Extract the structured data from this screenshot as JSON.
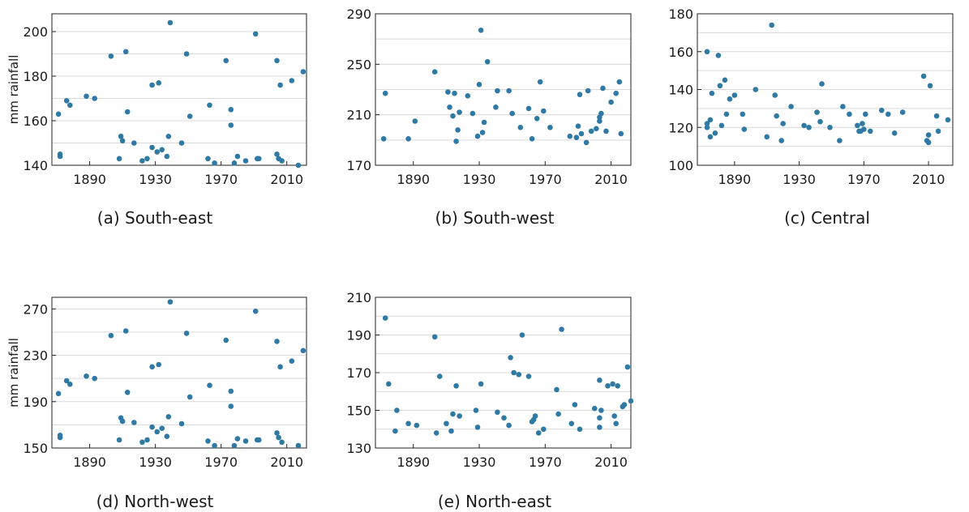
{
  "point_color": "#2f79a5",
  "chart_data": [
    {
      "type": "scatter",
      "caption": "(a) South-east",
      "ylabel": "mm rainfall",
      "xlim": [
        1867,
        2022
      ],
      "ylim": [
        140,
        208
      ],
      "xticks": [
        1890,
        1930,
        1970,
        2010
      ],
      "yticks": [
        140,
        160,
        180,
        200
      ],
      "points": [
        [
          1871,
          163
        ],
        [
          1872,
          145
        ],
        [
          1872,
          144
        ],
        [
          1876,
          169
        ],
        [
          1878,
          167
        ],
        [
          1888,
          171
        ],
        [
          1893,
          170
        ],
        [
          1903,
          189
        ],
        [
          1908,
          143
        ],
        [
          1909,
          153
        ],
        [
          1910,
          151
        ],
        [
          1912,
          191
        ],
        [
          1913,
          164
        ],
        [
          1917,
          150
        ],
        [
          1922,
          142
        ],
        [
          1925,
          143
        ],
        [
          1928,
          176
        ],
        [
          1928,
          148
        ],
        [
          1931,
          146
        ],
        [
          1932,
          177
        ],
        [
          1934,
          147
        ],
        [
          1937,
          144
        ],
        [
          1938,
          153
        ],
        [
          1939,
          204
        ],
        [
          1946,
          150
        ],
        [
          1949,
          190
        ],
        [
          1951,
          162
        ],
        [
          1962,
          143
        ],
        [
          1963,
          167
        ],
        [
          1966,
          141
        ],
        [
          1973,
          187
        ],
        [
          1976,
          165
        ],
        [
          1976,
          158
        ],
        [
          1978,
          141
        ],
        [
          1980,
          144
        ],
        [
          1985,
          142
        ],
        [
          1991,
          199
        ],
        [
          1992,
          143
        ],
        [
          1993,
          143
        ],
        [
          2004,
          187
        ],
        [
          2004,
          145
        ],
        [
          2005,
          143
        ],
        [
          2006,
          176
        ],
        [
          2007,
          142
        ],
        [
          2013,
          178
        ],
        [
          2017,
          140
        ],
        [
          2020,
          182
        ]
      ]
    },
    {
      "type": "scatter",
      "caption": "(b) South-west",
      "ylabel": "",
      "xlim": [
        1867,
        2022
      ],
      "ylim": [
        170,
        290
      ],
      "xticks": [
        1890,
        1930,
        1970,
        2010
      ],
      "yticks": [
        170,
        210,
        250,
        290
      ],
      "points": [
        [
          1872,
          191
        ],
        [
          1873,
          227
        ],
        [
          1887,
          191
        ],
        [
          1891,
          205
        ],
        [
          1903,
          244
        ],
        [
          1911,
          228
        ],
        [
          1912,
          216
        ],
        [
          1914,
          209
        ],
        [
          1915,
          227
        ],
        [
          1916,
          189
        ],
        [
          1917,
          198
        ],
        [
          1918,
          212
        ],
        [
          1923,
          225
        ],
        [
          1926,
          211
        ],
        [
          1929,
          193
        ],
        [
          1930,
          234
        ],
        [
          1931,
          277
        ],
        [
          1932,
          196
        ],
        [
          1933,
          204
        ],
        [
          1935,
          252
        ],
        [
          1940,
          216
        ],
        [
          1941,
          229
        ],
        [
          1948,
          229
        ],
        [
          1950,
          211
        ],
        [
          1955,
          200
        ],
        [
          1960,
          215
        ],
        [
          1962,
          191
        ],
        [
          1965,
          207
        ],
        [
          1967,
          236
        ],
        [
          1969,
          213
        ],
        [
          1973,
          200
        ],
        [
          1985,
          193
        ],
        [
          1989,
          192
        ],
        [
          1990,
          201
        ],
        [
          1991,
          226
        ],
        [
          1992,
          195
        ],
        [
          1995,
          188
        ],
        [
          1996,
          229
        ],
        [
          1998,
          197
        ],
        [
          2001,
          199
        ],
        [
          2003,
          205
        ],
        [
          2003,
          208
        ],
        [
          2004,
          211
        ],
        [
          2005,
          231
        ],
        [
          2007,
          197
        ],
        [
          2010,
          220
        ],
        [
          2013,
          227
        ],
        [
          2015,
          236
        ],
        [
          2016,
          195
        ]
      ]
    },
    {
      "type": "scatter",
      "caption": "(c) Central",
      "ylabel": "",
      "xlim": [
        1867,
        2025
      ],
      "ylim": [
        100,
        180
      ],
      "xticks": [
        1890,
        1930,
        1970,
        2010
      ],
      "yticks": [
        100,
        120,
        140,
        160,
        180
      ],
      "points": [
        [
          1873,
          160
        ],
        [
          1873,
          122
        ],
        [
          1873,
          120
        ],
        [
          1875,
          124
        ],
        [
          1875,
          115
        ],
        [
          1876,
          138
        ],
        [
          1878,
          117
        ],
        [
          1880,
          158
        ],
        [
          1881,
          142
        ],
        [
          1882,
          121
        ],
        [
          1884,
          145
        ],
        [
          1885,
          127
        ],
        [
          1887,
          135
        ],
        [
          1890,
          137
        ],
        [
          1895,
          127
        ],
        [
          1896,
          119
        ],
        [
          1903,
          140
        ],
        [
          1910,
          115
        ],
        [
          1913,
          174
        ],
        [
          1915,
          137
        ],
        [
          1916,
          126
        ],
        [
          1919,
          113
        ],
        [
          1920,
          122
        ],
        [
          1925,
          131
        ],
        [
          1933,
          121
        ],
        [
          1936,
          120
        ],
        [
          1941,
          128
        ],
        [
          1943,
          123
        ],
        [
          1944,
          143
        ],
        [
          1949,
          120
        ],
        [
          1955,
          113
        ],
        [
          1957,
          131
        ],
        [
          1961,
          127
        ],
        [
          1966,
          121
        ],
        [
          1967,
          118
        ],
        [
          1968,
          118
        ],
        [
          1969,
          122
        ],
        [
          1970,
          119
        ],
        [
          1971,
          127
        ],
        [
          1974,
          118
        ],
        [
          1981,
          129
        ],
        [
          1985,
          127
        ],
        [
          1989,
          117
        ],
        [
          1994,
          128
        ],
        [
          2007,
          147
        ],
        [
          2009,
          113
        ],
        [
          2010,
          112
        ],
        [
          2010,
          116
        ],
        [
          2011,
          142
        ],
        [
          2015,
          126
        ],
        [
          2016,
          118
        ],
        [
          2022,
          124
        ]
      ]
    },
    {
      "type": "scatter",
      "caption": "(d) North-west",
      "ylabel": "mm rainfall",
      "xlim": [
        1867,
        2022
      ],
      "ylim": [
        150,
        280
      ],
      "xticks": [
        1890,
        1930,
        1970,
        2010
      ],
      "yticks": [
        150,
        190,
        230,
        270
      ],
      "points": [
        [
          1871,
          197
        ],
        [
          1872,
          161
        ],
        [
          1872,
          159
        ],
        [
          1876,
          208
        ],
        [
          1878,
          205
        ],
        [
          1888,
          212
        ],
        [
          1893,
          210
        ],
        [
          1903,
          247
        ],
        [
          1908,
          157
        ],
        [
          1909,
          176
        ],
        [
          1910,
          173
        ],
        [
          1912,
          251
        ],
        [
          1913,
          198
        ],
        [
          1917,
          172
        ],
        [
          1922,
          155
        ],
        [
          1925,
          157
        ],
        [
          1928,
          220
        ],
        [
          1928,
          168
        ],
        [
          1931,
          164
        ],
        [
          1932,
          222
        ],
        [
          1934,
          167
        ],
        [
          1937,
          160
        ],
        [
          1938,
          177
        ],
        [
          1939,
          276
        ],
        [
          1946,
          171
        ],
        [
          1949,
          249
        ],
        [
          1951,
          194
        ],
        [
          1962,
          156
        ],
        [
          1963,
          204
        ],
        [
          1966,
          152
        ],
        [
          1973,
          243
        ],
        [
          1976,
          199
        ],
        [
          1976,
          186
        ],
        [
          1978,
          152
        ],
        [
          1980,
          158
        ],
        [
          1985,
          156
        ],
        [
          1991,
          268
        ],
        [
          1992,
          157
        ],
        [
          1993,
          157
        ],
        [
          2004,
          242
        ],
        [
          2004,
          163
        ],
        [
          2005,
          159
        ],
        [
          2006,
          220
        ],
        [
          2007,
          155
        ],
        [
          2013,
          225
        ],
        [
          2017,
          152
        ],
        [
          2020,
          234
        ]
      ]
    },
    {
      "type": "scatter",
      "caption": "(e) North-east",
      "ylabel": "",
      "xlim": [
        1867,
        2022
      ],
      "ylim": [
        130,
        210
      ],
      "xticks": [
        1890,
        1930,
        1970,
        2010
      ],
      "yticks": [
        130,
        150,
        170,
        190,
        210
      ],
      "points": [
        [
          1873,
          199
        ],
        [
          1875,
          164
        ],
        [
          1879,
          139
        ],
        [
          1880,
          150
        ],
        [
          1887,
          143
        ],
        [
          1892,
          142
        ],
        [
          1903,
          189
        ],
        [
          1904,
          138
        ],
        [
          1906,
          168
        ],
        [
          1910,
          143
        ],
        [
          1913,
          139
        ],
        [
          1914,
          148
        ],
        [
          1916,
          163
        ],
        [
          1918,
          147
        ],
        [
          1928,
          150
        ],
        [
          1929,
          141
        ],
        [
          1931,
          164
        ],
        [
          1941,
          149
        ],
        [
          1945,
          146
        ],
        [
          1948,
          142
        ],
        [
          1949,
          178
        ],
        [
          1951,
          170
        ],
        [
          1954,
          169
        ],
        [
          1956,
          190
        ],
        [
          1960,
          168
        ],
        [
          1962,
          144
        ],
        [
          1963,
          145
        ],
        [
          1964,
          147
        ],
        [
          1966,
          138
        ],
        [
          1969,
          140
        ],
        [
          1977,
          161
        ],
        [
          1978,
          148
        ],
        [
          1980,
          193
        ],
        [
          1986,
          143
        ],
        [
          1988,
          153
        ],
        [
          1991,
          140
        ],
        [
          2000,
          151
        ],
        [
          2003,
          166
        ],
        [
          2003,
          141
        ],
        [
          2003,
          146
        ],
        [
          2004,
          150
        ],
        [
          2008,
          163
        ],
        [
          2011,
          164
        ],
        [
          2012,
          147
        ],
        [
          2013,
          143
        ],
        [
          2014,
          163
        ],
        [
          2017,
          152
        ],
        [
          2018,
          153
        ],
        [
          2020,
          173
        ],
        [
          2022,
          155
        ]
      ]
    }
  ]
}
